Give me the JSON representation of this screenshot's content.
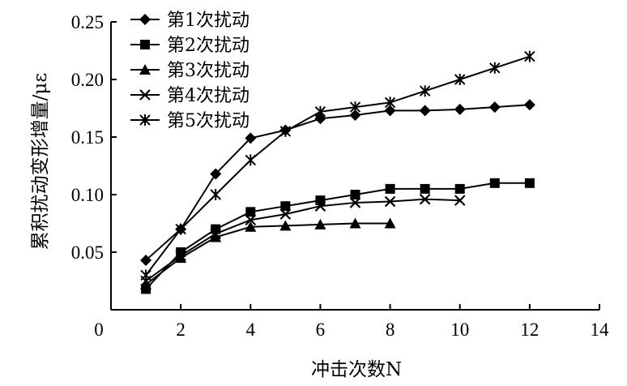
{
  "chart_data": {
    "type": "line",
    "title": "",
    "xlabel": "冲击次数N",
    "ylabel": "累积扰动变形增量/με",
    "xlim": [
      0,
      14
    ],
    "ylim": [
      0,
      0.25
    ],
    "xticks": [
      "0",
      "2",
      "4",
      "6",
      "8",
      "10",
      "12",
      "14"
    ],
    "yticks": [
      "0.05",
      "0.10",
      "0.15",
      "0.20",
      "0.25"
    ],
    "grid": false,
    "legend_position": "top-left",
    "series": [
      {
        "name": "第1次扰动",
        "marker": "diamond",
        "x": [
          1,
          2,
          3,
          4,
          5,
          6,
          7,
          8,
          9,
          10,
          11,
          12
        ],
        "y": [
          0.043,
          0.07,
          0.118,
          0.149,
          0.156,
          0.166,
          0.169,
          0.173,
          0.173,
          0.174,
          0.176,
          0.178
        ]
      },
      {
        "name": "第2次扰动",
        "marker": "square",
        "x": [
          1,
          2,
          3,
          4,
          5,
          6,
          7,
          8,
          9,
          10,
          11,
          12
        ],
        "y": [
          0.018,
          0.05,
          0.07,
          0.085,
          0.09,
          0.095,
          0.1,
          0.105,
          0.105,
          0.105,
          0.11,
          0.11
        ]
      },
      {
        "name": "第3次扰动",
        "marker": "triangle",
        "x": [
          1,
          2,
          3,
          4,
          5,
          6,
          7,
          8
        ],
        "y": [
          0.022,
          0.045,
          0.063,
          0.072,
          0.073,
          0.074,
          0.075,
          0.075
        ]
      },
      {
        "name": "第4次扰动",
        "marker": "x",
        "x": [
          1,
          2,
          3,
          4,
          5,
          6,
          7,
          8,
          9,
          10
        ],
        "y": [
          0.025,
          0.047,
          0.066,
          0.078,
          0.083,
          0.09,
          0.093,
          0.094,
          0.096,
          0.095
        ]
      },
      {
        "name": "第5次扰动",
        "marker": "asterisk",
        "x": [
          1,
          2,
          3,
          4,
          5,
          6,
          7,
          8,
          9,
          10,
          11,
          12
        ],
        "y": [
          0.03,
          0.07,
          0.1,
          0.13,
          0.155,
          0.172,
          0.176,
          0.18,
          0.19,
          0.2,
          0.21,
          0.22
        ]
      }
    ]
  }
}
